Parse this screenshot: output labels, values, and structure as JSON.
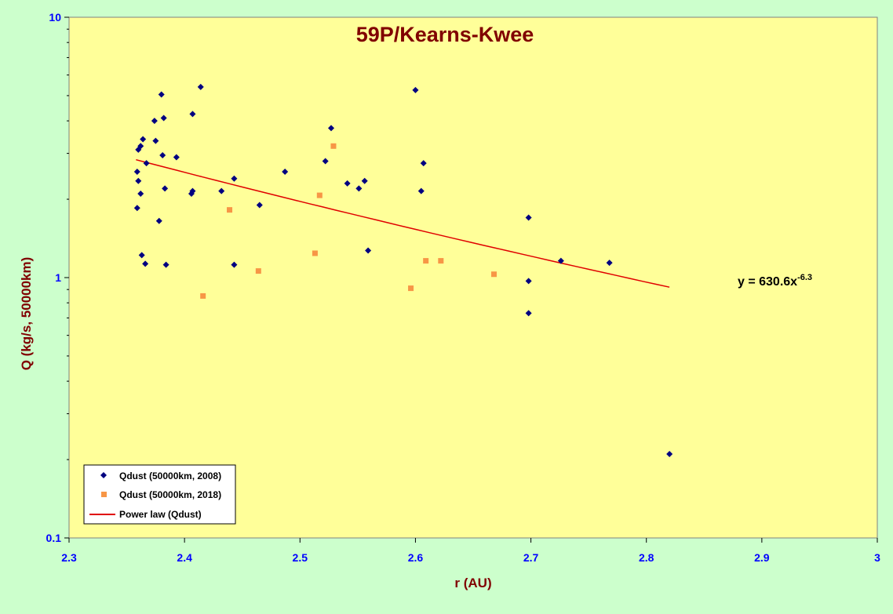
{
  "chart_data": {
    "type": "scatter",
    "title": "59P/Kearns-Kwee",
    "xlabel": "r (AU)",
    "ylabel": "Q (kg/s, 50000km)",
    "xlim": [
      2.3,
      3.0
    ],
    "ylim": [
      0.1,
      10
    ],
    "yscale": "log",
    "grid": false,
    "legend_position": "bottom-left",
    "x_ticks": [
      "2.3",
      "2.4",
      "2.5",
      "2.6",
      "2.7",
      "2.8",
      "2.9",
      "3"
    ],
    "y_ticks": [
      "0.1",
      "1",
      "10"
    ],
    "colors": {
      "background": "#ccffcc",
      "plot_area": "#ffff99",
      "title": "#800000",
      "axis_label": "#800000",
      "tick_label": "#0000ff",
      "series_2008": "#000080",
      "series_2018": "#f79646",
      "fit_line": "#e00000"
    },
    "series": [
      {
        "name": "Qdust (50000km, 2008)",
        "marker": "diamond",
        "points": [
          [
            2.359,
            1.85
          ],
          [
            2.359,
            2.55
          ],
          [
            2.36,
            2.35
          ],
          [
            2.36,
            3.1
          ],
          [
            2.362,
            3.2
          ],
          [
            2.362,
            2.1
          ],
          [
            2.363,
            1.22
          ],
          [
            2.364,
            3.4
          ],
          [
            2.366,
            1.13
          ],
          [
            2.367,
            2.75
          ],
          [
            2.374,
            4.0
          ],
          [
            2.375,
            3.35
          ],
          [
            2.378,
            1.65
          ],
          [
            2.38,
            5.05
          ],
          [
            2.381,
            2.95
          ],
          [
            2.382,
            4.1
          ],
          [
            2.383,
            2.2
          ],
          [
            2.384,
            1.12
          ],
          [
            2.406,
            2.1
          ],
          [
            2.407,
            2.15
          ],
          [
            2.407,
            4.25
          ],
          [
            2.393,
            2.9
          ],
          [
            2.414,
            5.4
          ],
          [
            2.432,
            2.15
          ],
          [
            2.443,
            2.4
          ],
          [
            2.443,
            1.12
          ],
          [
            2.465,
            1.9
          ],
          [
            2.487,
            2.55
          ],
          [
            2.522,
            2.8
          ],
          [
            2.527,
            3.75
          ],
          [
            2.541,
            2.3
          ],
          [
            2.551,
            2.2
          ],
          [
            2.556,
            2.35
          ],
          [
            2.559,
            1.27
          ],
          [
            2.6,
            5.25
          ],
          [
            2.605,
            2.15
          ],
          [
            2.607,
            2.75
          ],
          [
            2.698,
            1.7
          ],
          [
            2.698,
            0.97
          ],
          [
            2.698,
            0.73
          ],
          [
            2.726,
            1.16
          ],
          [
            2.768,
            1.14
          ],
          [
            2.82,
            0.21
          ]
        ]
      },
      {
        "name": "Qdust (50000km, 2018)",
        "marker": "square",
        "points": [
          [
            2.416,
            0.85
          ],
          [
            2.439,
            1.82
          ],
          [
            2.464,
            1.06
          ],
          [
            2.513,
            1.24
          ],
          [
            2.517,
            2.07
          ],
          [
            2.529,
            3.2
          ],
          [
            2.596,
            0.91
          ],
          [
            2.609,
            1.16
          ],
          [
            2.622,
            1.16
          ],
          [
            2.668,
            1.03
          ]
        ]
      }
    ],
    "fit": {
      "name": "Power law (Qdust)",
      "type": "power",
      "coefficient": 630.6,
      "exponent": -6.3,
      "x_range": [
        2.358,
        2.82
      ]
    },
    "annotation": {
      "prefix": "y = 630.6x",
      "superscript": "-6.3"
    }
  }
}
